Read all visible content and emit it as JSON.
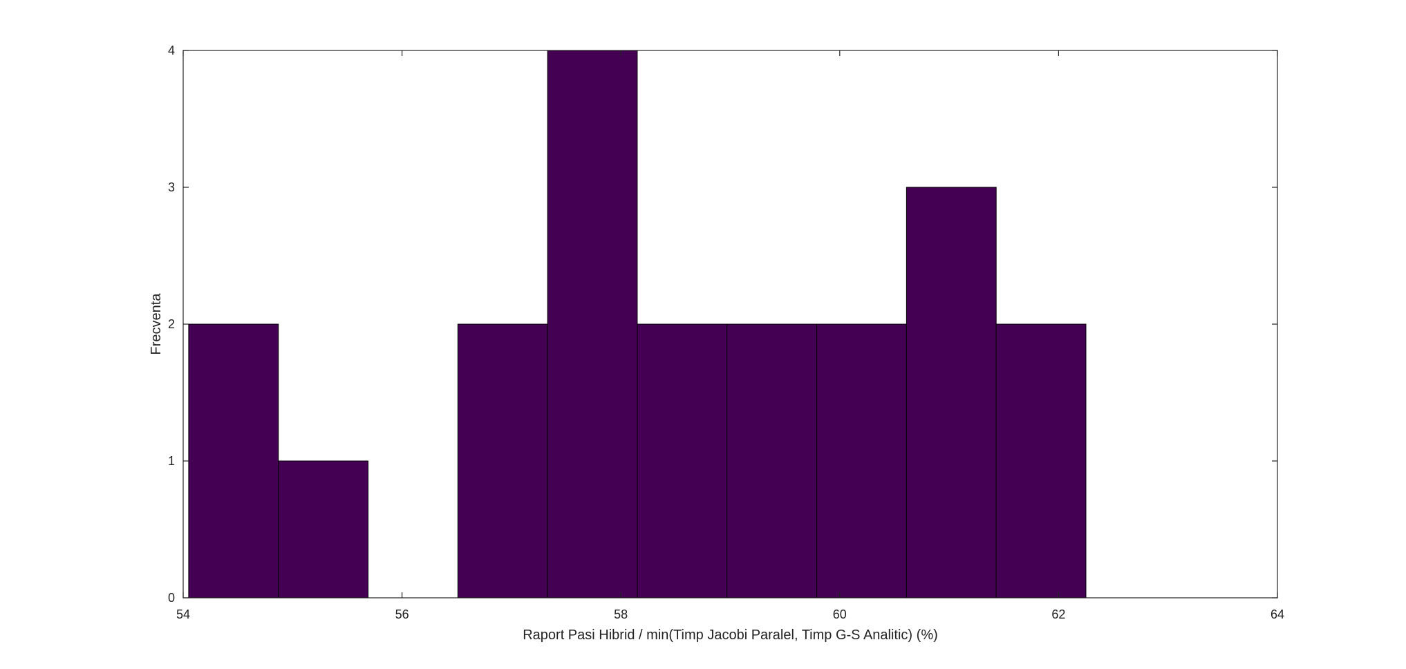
{
  "chart_data": {
    "type": "bar",
    "title": "",
    "xlabel": "Raport Pasi Hibrid / min(Timp Jacobi Paralel, Timp G-S Analitic) (%)",
    "ylabel": "Frecventa",
    "xlim": [
      54,
      64
    ],
    "ylim": [
      0,
      4
    ],
    "xticks": [
      "54",
      "56",
      "58",
      "60",
      "62",
      "64"
    ],
    "yticks": [
      "0",
      "1",
      "2",
      "3",
      "4"
    ],
    "grid": false,
    "bar_color": "#440154",
    "bins": [
      {
        "x0": 54.05,
        "x1": 54.87,
        "count": 2
      },
      {
        "x0": 54.87,
        "x1": 55.69,
        "count": 1
      },
      {
        "x0": 55.69,
        "x1": 56.51,
        "count": 0
      },
      {
        "x0": 56.51,
        "x1": 57.33,
        "count": 2
      },
      {
        "x0": 57.33,
        "x1": 58.15,
        "count": 4
      },
      {
        "x0": 58.15,
        "x1": 58.97,
        "count": 2
      },
      {
        "x0": 58.97,
        "x1": 59.79,
        "count": 2
      },
      {
        "x0": 59.79,
        "x1": 60.61,
        "count": 2
      },
      {
        "x0": 60.61,
        "x1": 61.43,
        "count": 3
      },
      {
        "x0": 61.43,
        "x1": 62.25,
        "count": 2
      }
    ]
  }
}
